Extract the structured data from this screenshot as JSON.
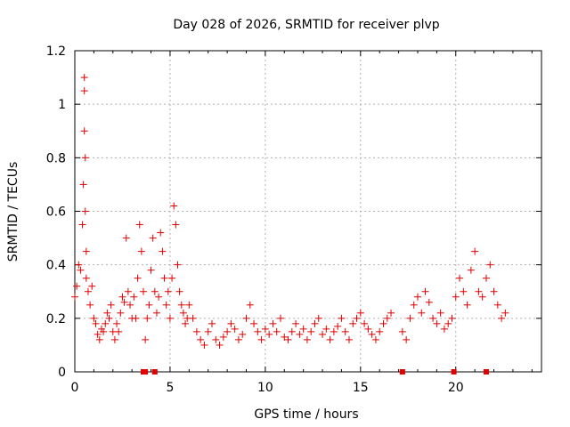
{
  "chart_data": {
    "type": "scatter",
    "title": "Day 028 of 2026, SRMTID for receiver plvp",
    "xlabel": "GPS time / hours",
    "ylabel": "SRMTID / TECUs",
    "xlim": [
      0,
      24.5
    ],
    "ylim": [
      0,
      1.2
    ],
    "xticks": [
      0,
      5,
      10,
      15,
      20
    ],
    "xtick_labels": [
      "0",
      "5",
      "10",
      "15",
      "20"
    ],
    "yticks": [
      0,
      0.2,
      0.4,
      0.6,
      0.8,
      1.0,
      1.2
    ],
    "ytick_labels": [
      "0",
      "0.2",
      "0.4",
      "0.6",
      "0.8",
      "1",
      "1.2"
    ],
    "grid": true,
    "marker": "plus",
    "color": "#e00000",
    "series": [
      {
        "name": "SRMTID",
        "x": [
          0.0,
          0.1,
          0.2,
          0.3,
          0.4,
          0.45,
          0.5,
          0.5,
          0.5,
          0.55,
          0.55,
          0.6,
          0.6,
          0.7,
          0.8,
          0.9,
          1.0,
          1.1,
          1.2,
          1.3,
          1.4,
          1.5,
          1.6,
          1.7,
          1.8,
          1.9,
          2.0,
          2.1,
          2.2,
          2.3,
          2.4,
          2.5,
          2.6,
          2.7,
          2.8,
          2.9,
          3.0,
          3.1,
          3.2,
          3.3,
          3.4,
          3.5,
          3.6,
          3.7,
          3.8,
          3.9,
          4.0,
          4.1,
          4.2,
          4.3,
          4.4,
          4.5,
          4.6,
          4.7,
          4.8,
          4.9,
          5.0,
          5.1,
          5.2,
          5.3,
          5.4,
          5.5,
          5.6,
          5.7,
          5.8,
          5.9,
          6.0,
          6.2,
          6.4,
          6.6,
          6.8,
          7.0,
          7.2,
          7.4,
          7.6,
          7.8,
          8.0,
          8.2,
          8.4,
          8.6,
          8.8,
          9.0,
          9.2,
          9.4,
          9.6,
          9.8,
          10.0,
          10.2,
          10.4,
          10.6,
          10.8,
          11.0,
          11.2,
          11.4,
          11.6,
          11.8,
          12.0,
          12.2,
          12.4,
          12.6,
          12.8,
          13.0,
          13.2,
          13.4,
          13.6,
          13.8,
          14.0,
          14.2,
          14.4,
          14.6,
          14.8,
          15.0,
          15.2,
          15.4,
          15.6,
          15.8,
          16.0,
          16.2,
          16.4,
          16.6,
          17.2,
          17.4,
          17.6,
          17.8,
          18.0,
          18.2,
          18.4,
          18.6,
          18.8,
          19.0,
          19.2,
          19.4,
          19.6,
          19.8,
          20.0,
          20.2,
          20.4,
          20.6,
          20.8,
          21.0,
          21.2,
          21.4,
          21.6,
          21.8,
          22.0,
          22.2,
          22.4,
          22.6
        ],
        "y": [
          0.28,
          0.32,
          0.4,
          0.38,
          0.55,
          0.7,
          0.9,
          1.05,
          1.1,
          0.8,
          0.6,
          0.45,
          0.35,
          0.3,
          0.25,
          0.32,
          0.2,
          0.18,
          0.14,
          0.12,
          0.16,
          0.15,
          0.18,
          0.22,
          0.2,
          0.25,
          0.15,
          0.12,
          0.18,
          0.15,
          0.22,
          0.28,
          0.26,
          0.5,
          0.3,
          0.25,
          0.2,
          0.28,
          0.2,
          0.35,
          0.55,
          0.45,
          0.3,
          0.12,
          0.2,
          0.25,
          0.38,
          0.5,
          0.3,
          0.22,
          0.28,
          0.52,
          0.45,
          0.35,
          0.25,
          0.3,
          0.2,
          0.35,
          0.62,
          0.55,
          0.4,
          0.3,
          0.25,
          0.22,
          0.18,
          0.2,
          0.25,
          0.2,
          0.15,
          0.12,
          0.1,
          0.15,
          0.18,
          0.12,
          0.1,
          0.13,
          0.15,
          0.18,
          0.16,
          0.12,
          0.14,
          0.2,
          0.25,
          0.18,
          0.15,
          0.12,
          0.16,
          0.14,
          0.18,
          0.15,
          0.2,
          0.13,
          0.12,
          0.15,
          0.18,
          0.14,
          0.16,
          0.12,
          0.15,
          0.18,
          0.2,
          0.14,
          0.16,
          0.12,
          0.15,
          0.17,
          0.2,
          0.15,
          0.12,
          0.18,
          0.2,
          0.22,
          0.18,
          0.16,
          0.14,
          0.12,
          0.15,
          0.18,
          0.2,
          0.22,
          0.15,
          0.12,
          0.2,
          0.25,
          0.28,
          0.22,
          0.3,
          0.26,
          0.2,
          0.18,
          0.22,
          0.16,
          0.18,
          0.2,
          0.28,
          0.35,
          0.3,
          0.25,
          0.38,
          0.45,
          0.3,
          0.28,
          0.35,
          0.4,
          0.3,
          0.25,
          0.2,
          0.22
        ]
      }
    ],
    "gap_markers_x": [
      3.6,
      3.7,
      4.2,
      17.2,
      19.9,
      21.6
    ]
  }
}
